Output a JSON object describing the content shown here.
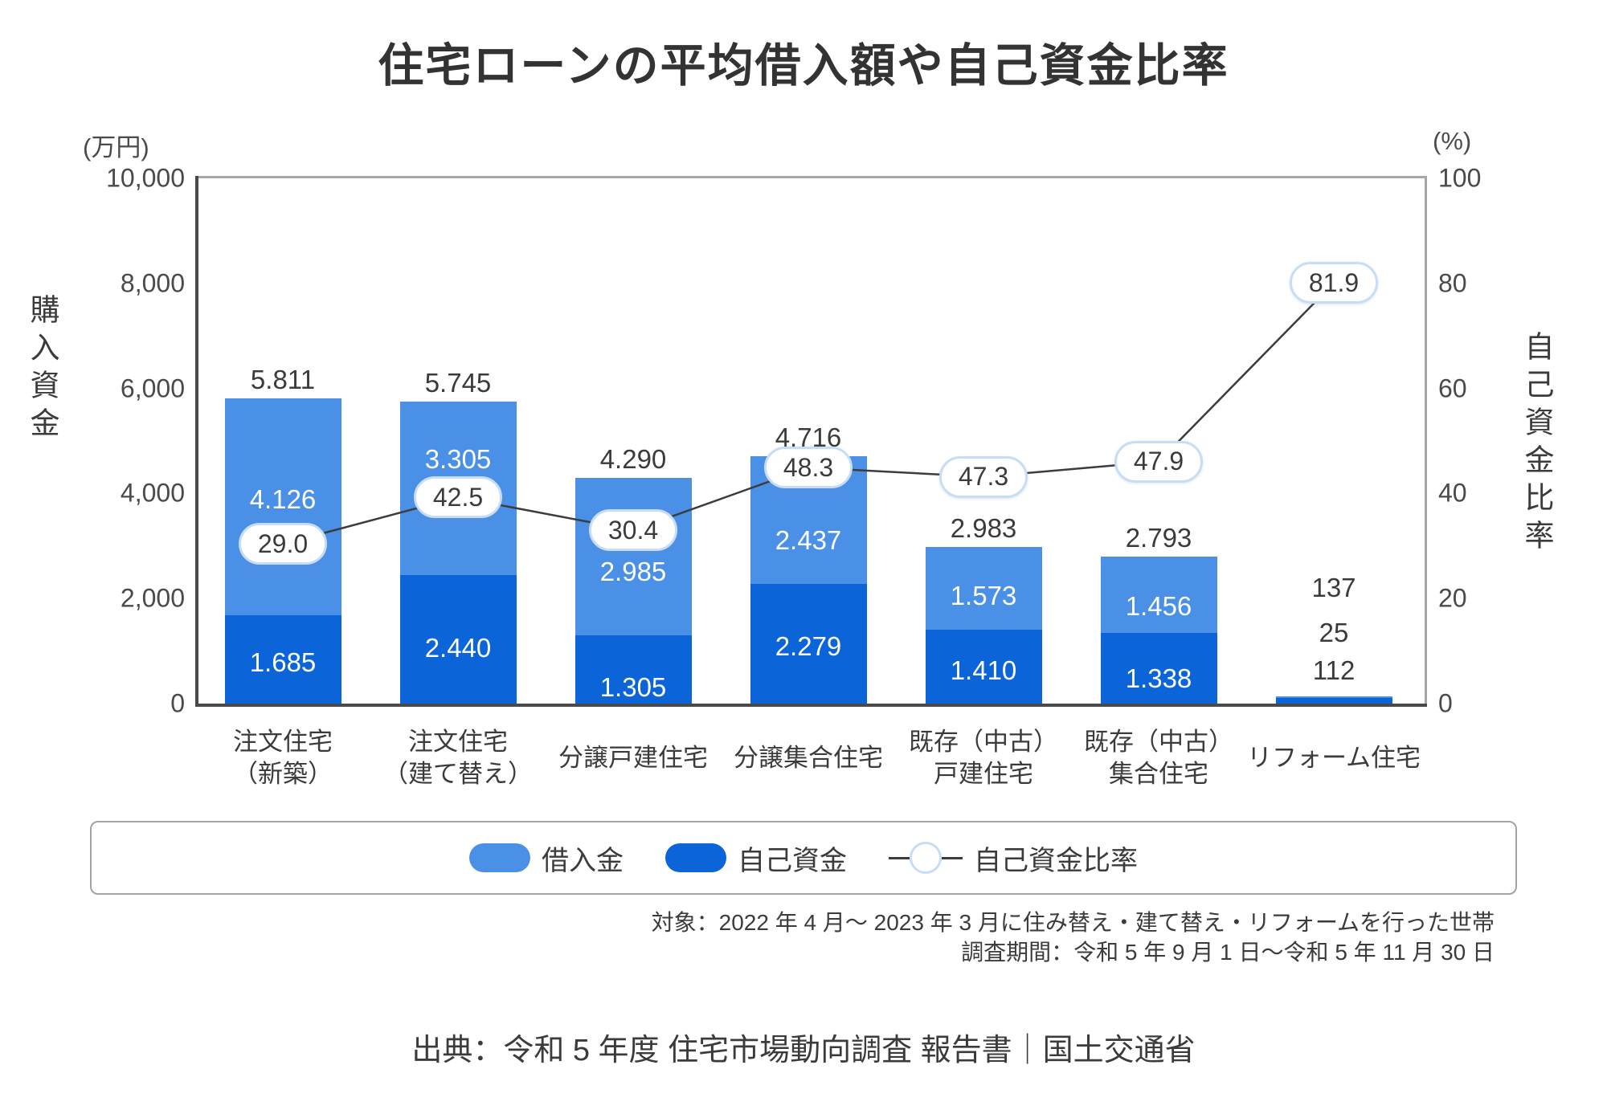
{
  "title": "住宅ローンの平均借入額や自己資金比率",
  "left_axis": {
    "unit": "(万円)",
    "title": "購入資金",
    "max": 10000,
    "ticks": [
      {
        "value": 10000,
        "label": "10,000"
      },
      {
        "value": 8000,
        "label": "8,000"
      },
      {
        "value": 6000,
        "label": "6,000"
      },
      {
        "value": 4000,
        "label": "4,000"
      },
      {
        "value": 2000,
        "label": "2,000"
      },
      {
        "value": 0,
        "label": "0"
      }
    ]
  },
  "right_axis": {
    "unit": "(%)",
    "title": "自己資金比率",
    "max": 100,
    "ticks": [
      {
        "value": 100,
        "label": "100"
      },
      {
        "value": 80,
        "label": "80"
      },
      {
        "value": 60,
        "label": "60"
      },
      {
        "value": 40,
        "label": "40"
      },
      {
        "value": 20,
        "label": "20"
      },
      {
        "value": 0,
        "label": "0"
      }
    ]
  },
  "chart_data": {
    "type": "bar",
    "subtype": "stacked-bar-with-line",
    "title": "住宅ローンの平均借入額や自己資金比率",
    "categories": [
      "注文住宅（新築）",
      "注文住宅（建て替え）",
      "分譲戸建住宅",
      "分譲集合住宅",
      "既存（中古）戸建住宅",
      "既存（中古）集合住宅",
      "リフォーム住宅"
    ],
    "category_lines": [
      [
        "注文住宅",
        "（新築）"
      ],
      [
        "注文住宅",
        "（建て替え）"
      ],
      [
        "分譲戸建住宅"
      ],
      [
        "分譲集合住宅"
      ],
      [
        "既存（中古）",
        "戸建住宅"
      ],
      [
        "既存（中古）",
        "集合住宅"
      ],
      [
        "リフォーム住宅"
      ]
    ],
    "series": [
      {
        "name": "借入金",
        "type": "bar",
        "stack_position": "top",
        "color": "#4a90e6",
        "values": [
          4126,
          3305,
          2985,
          2437,
          1573,
          1456,
          25
        ],
        "labels": [
          "4.126",
          "3.305",
          "2.985",
          "2.437",
          "1.573",
          "1.456",
          "25"
        ]
      },
      {
        "name": "自己資金",
        "type": "bar",
        "stack_position": "bottom",
        "color": "#0b65d9",
        "values": [
          1685,
          2440,
          1305,
          2279,
          1410,
          1338,
          112
        ],
        "labels": [
          "1.685",
          "2.440",
          "1.305",
          "2.279",
          "1.410",
          "1.338",
          "112"
        ]
      },
      {
        "name": "自己資金比率",
        "type": "line",
        "axis": "right",
        "color": "#3c3c3c",
        "values": [
          29.0,
          42.5,
          30.4,
          48.3,
          47.3,
          47.9,
          81.9
        ],
        "labels": [
          "29.0",
          "42.5",
          "30.4",
          "48.3",
          "47.3",
          "47.9",
          "81.9"
        ]
      }
    ],
    "totals": {
      "values": [
        5811,
        5745,
        4290,
        4716,
        2983,
        2793,
        137
      ],
      "labels": [
        "5.811",
        "5.745",
        "4.290",
        "4.716",
        "2.983",
        "2.793",
        "137"
      ]
    },
    "ylim_left": [
      0,
      10000
    ],
    "ylim_right": [
      0,
      100
    ],
    "grid": false,
    "legend_position": "bottom",
    "layout_hints": {
      "bubble_dy": [
        -9,
        21,
        -17,
        22,
        27,
        12,
        12
      ],
      "loan_label_dy": [
        -9,
        -36,
        19,
        26,
        10,
        14,
        0
      ],
      "equity_label_dy": [
        4,
        11,
        23,
        4,
        5,
        13,
        0
      ]
    }
  },
  "legend": {
    "items": [
      {
        "label": "借入金"
      },
      {
        "label": "自己資金"
      },
      {
        "label": "自己資金比率"
      }
    ]
  },
  "notes": [
    "対象：2022 年 4 月～ 2023 年 3 月に住み替え・建て替え・リフォームを行った世帯",
    "調査期間：令和 5 年 9 月 1 日～令和 5 年 11 月 30 日"
  ],
  "source": "出典：令和 5 年度 住宅市場動向調査 報告書｜国土交通省",
  "colors": {
    "loan": "#4a90e6",
    "equity": "#0b65d9",
    "line": "#3c3c3c",
    "bubble_border": "#c7ddf6"
  }
}
